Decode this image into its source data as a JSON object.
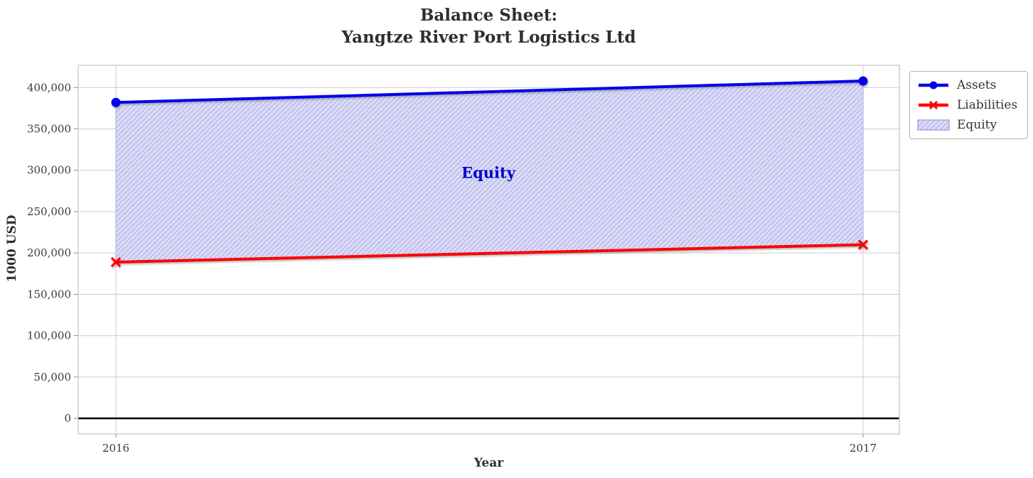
{
  "title": {
    "line1": "Balance Sheet:",
    "line2": "Yangtze River Port Logistics Ltd"
  },
  "axes": {
    "xlabel": "Year",
    "ylabel": "1000 USD"
  },
  "annotation": {
    "label": "Equity"
  },
  "legend": {
    "position": "upper-right-outside",
    "items": [
      {
        "label": "Assets",
        "swatch": "blue-line-circle-marker",
        "color": "#0000ee"
      },
      {
        "label": "Liabilities",
        "swatch": "red-line-x-marker",
        "color": "#ff0000"
      },
      {
        "label": "Equity",
        "swatch": "hatched-patch",
        "color": "#dcdcf7"
      }
    ]
  },
  "chart_data": {
    "type": "area",
    "title": "Balance Sheet:\nYangtze River Port Logistics Ltd",
    "xlabel": "Year",
    "ylabel": "1000 USD",
    "x": [
      "2016",
      "2017"
    ],
    "series": [
      {
        "name": "Assets",
        "values": [
          382000,
          408000
        ],
        "color": "#0000ee",
        "marker": "circle",
        "linewidth": 4
      },
      {
        "name": "Liabilities",
        "values": [
          189000,
          210000
        ],
        "color": "#ff0000",
        "marker": "x",
        "linewidth": 4
      }
    ],
    "equity_band": {
      "name": "Equity",
      "between": [
        "Liabilities",
        "Assets"
      ],
      "implied_values": [
        193000,
        198000
      ],
      "fill": "#dcdcf7",
      "hatch": "/",
      "hatch_color": "#bcbcee",
      "edge_color": "#b4b4ea"
    },
    "yticks": [
      0,
      50000,
      100000,
      150000,
      200000,
      250000,
      300000,
      350000,
      400000
    ],
    "ytick_labels": [
      "0",
      "50,000",
      "100,000",
      "150,000",
      "200,000",
      "250,000",
      "300,000",
      "350,000",
      "400,000"
    ],
    "ylim": [
      -19000,
      427000
    ],
    "grid": true,
    "zero_line": {
      "color": "#000000",
      "width": 2.4
    },
    "gridline_color": "#cccccc",
    "spine_color": "#c2c2c2"
  }
}
